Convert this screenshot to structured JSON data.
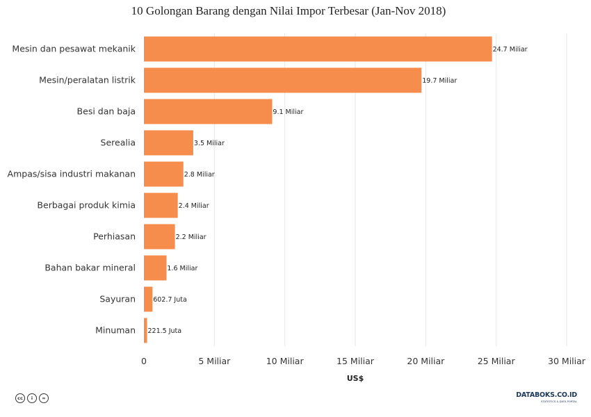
{
  "chart_data": {
    "type": "bar",
    "orientation": "horizontal",
    "title": "10 Golongan Barang dengan Nilai Impor Terbesar (Jan-Nov 2018)",
    "xlabel": "US$",
    "ylabel": "",
    "xlim": [
      0,
      30000000000
    ],
    "x_ticks": [
      0,
      5000000000,
      10000000000,
      15000000000,
      20000000000,
      25000000000,
      30000000000
    ],
    "x_tick_labels": [
      "0",
      "5 Miliar",
      "10 Miliar",
      "15 Miliar",
      "20 Miliar",
      "25 Miliar",
      "30 Miliar"
    ],
    "grid": "vertical",
    "bar_color": "#F68D4D",
    "categories": [
      "Mesin dan pesawat mekanik",
      "Mesin/peralatan listrik",
      "Besi dan baja",
      "Serealia",
      "Ampas/sisa industri makanan",
      "Berbagai produk kimia",
      "Perhiasan",
      "Bahan bakar mineral",
      "Sayuran",
      "Minuman"
    ],
    "values": [
      24700000000,
      19700000000,
      9100000000,
      3500000000,
      2800000000,
      2400000000,
      2200000000,
      1600000000,
      602700000,
      221500000
    ],
    "data_labels": [
      "24.7 Miliar",
      "19.7 Miliar",
      "9.1 Miliar",
      "3.5 Miliar",
      "2.8 Miliar",
      "2.4 Miliar",
      "2.2 Miliar",
      "1.6 Miliar",
      "602.7 Juta",
      "221.5 Juta"
    ]
  },
  "footer": {
    "license_icons": [
      "cc-icon",
      "attribution-icon",
      "no-derivatives-icon"
    ],
    "license_glyphs": [
      "cc",
      "i",
      "="
    ],
    "brand": "DATABOKS.CO.ID",
    "brand_tagline": "STATISTICS & DATA PORTAL"
  }
}
